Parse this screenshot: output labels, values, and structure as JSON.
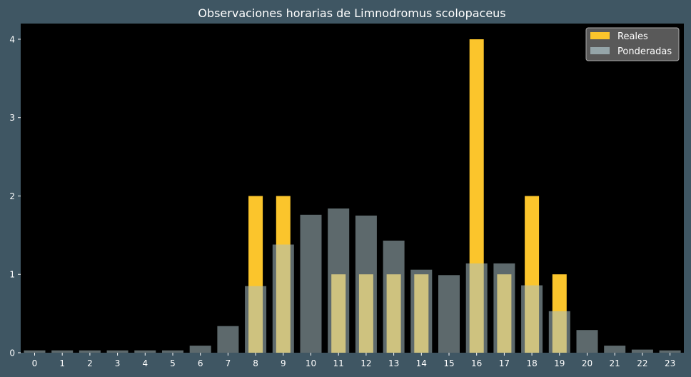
{
  "chart_data": {
    "type": "bar",
    "title": "Observaciones horarias de Limnodromus scolopaceus",
    "xlabel": "",
    "ylabel": "",
    "categories": [
      "0",
      "1",
      "2",
      "3",
      "4",
      "5",
      "6",
      "7",
      "8",
      "9",
      "10",
      "11",
      "12",
      "13",
      "14",
      "15",
      "16",
      "17",
      "18",
      "19",
      "20",
      "21",
      "22",
      "23"
    ],
    "ylim": [
      0,
      4.2
    ],
    "yticks": [
      "0",
      "1",
      "2",
      "3",
      "4"
    ],
    "grid": false,
    "legend_position": "top-right",
    "series": [
      {
        "name": "Reales",
        "color": "#fbc52c",
        "values": [
          0,
          0,
          0,
          0,
          0,
          0,
          0,
          0,
          2,
          2,
          0,
          1,
          1,
          1,
          1,
          0,
          4,
          1,
          2,
          1,
          0,
          0,
          0,
          0
        ]
      },
      {
        "name": "Ponderadas",
        "color": "#a9bfc4",
        "values": [
          0.03,
          0.03,
          0.03,
          0.03,
          0.03,
          0.03,
          0.09,
          0.34,
          0.85,
          1.38,
          1.76,
          1.84,
          1.75,
          1.43,
          1.06,
          0.99,
          1.14,
          1.14,
          0.86,
          0.53,
          0.29,
          0.09,
          0.04,
          0.03
        ]
      }
    ],
    "colors": {
      "background": "#3f5663",
      "plot_background": "#000000",
      "text": "#ffffff",
      "legend_background": "#595959"
    }
  }
}
